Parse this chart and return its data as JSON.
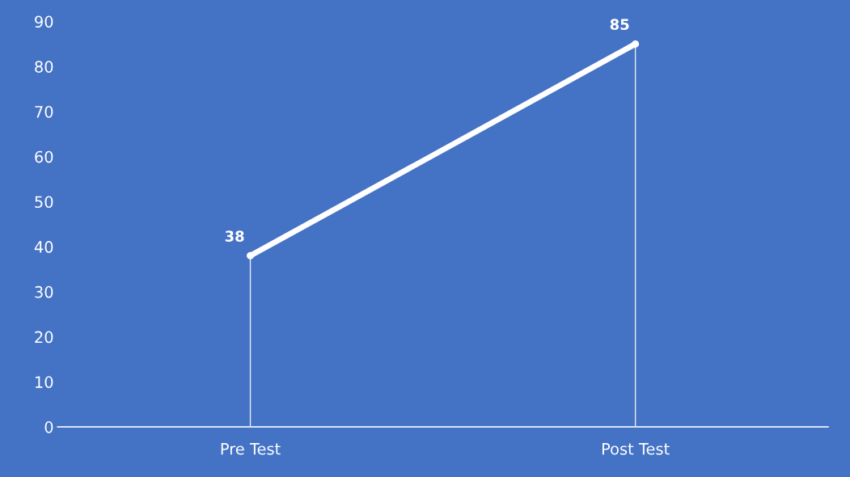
{
  "chart_data": {
    "type": "line",
    "categories": [
      "Pre Test",
      "Post Test"
    ],
    "series": [
      {
        "color": "#ffffff",
        "values": [
          38,
          85
        ],
        "value_labels": [
          "38",
          "85"
        ]
      },
      {
        "type": "lollipop",
        "color": "#ffffff",
        "values": [
          38,
          85
        ]
      }
    ],
    "ylim": [
      0,
      90
    ],
    "yticks": [
      0,
      10,
      20,
      30,
      40,
      50,
      60,
      70,
      80,
      90
    ],
    "grid": false,
    "legend": false,
    "marker": "none"
  }
}
